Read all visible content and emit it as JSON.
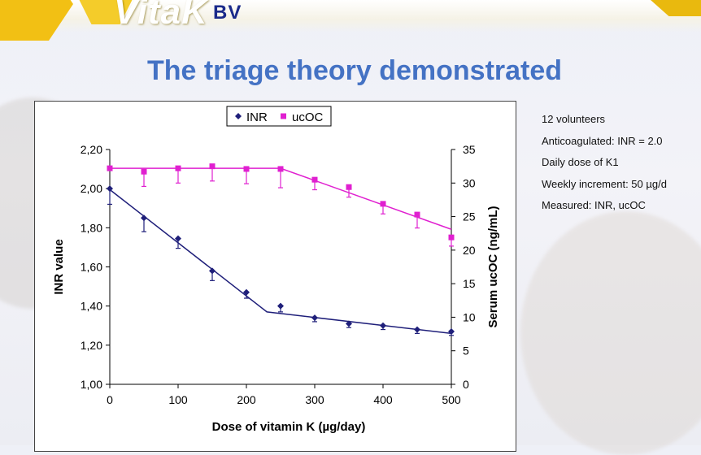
{
  "brand": {
    "logo_text": "VitaK",
    "logo_suffix": "BV",
    "accent": "#f2c014"
  },
  "slide": {
    "title": "The triage theory demonstrated"
  },
  "notes": [
    "12 volunteers",
    "Anticoagulated: INR = 2.0",
    "Daily dose of K1",
    "Weekly increment: 50 µg/d",
    "Measured: INR, ucOC"
  ],
  "chart_data": {
    "type": "scatter",
    "title": "",
    "xlabel": "Dose of vitamin K (µg/day)",
    "ylabel": "INR value",
    "y2label": "Serum ucOC (ng/mL)",
    "xlim": [
      0,
      500
    ],
    "ylim": [
      1.0,
      2.2
    ],
    "y2lim": [
      0,
      35
    ],
    "x_ticks": [
      "0",
      "100",
      "200",
      "300",
      "400",
      "500"
    ],
    "y_ticks": [
      "1,00",
      "1,20",
      "1,40",
      "1,60",
      "1,80",
      "2,00",
      "2,20"
    ],
    "y2_ticks": [
      "0",
      "5",
      "10",
      "15",
      "20",
      "25",
      "30",
      "35"
    ],
    "legend": {
      "placement": "top-center",
      "entries": [
        "INR",
        "ucOC"
      ]
    },
    "series": [
      {
        "name": "INR",
        "axis": "left",
        "color": "#1f1f7a",
        "marker": "diamond",
        "x": [
          0,
          50,
          100,
          150,
          200,
          250,
          300,
          350,
          400,
          450,
          500
        ],
        "values": [
          2.0,
          1.85,
          1.745,
          1.58,
          1.47,
          1.4,
          1.34,
          1.31,
          1.3,
          1.28,
          1.27
        ],
        "error": [
          0.08,
          0.07,
          0.05,
          0.05,
          0.03,
          0.03,
          0.02,
          0.02,
          0.02,
          0.02,
          0.02
        ],
        "fit_x": [
          0,
          230,
          500
        ],
        "fit_y": [
          1.995,
          1.37,
          1.26
        ]
      },
      {
        "name": "ucOC",
        "axis": "right",
        "color": "#e020d0",
        "marker": "square",
        "x": [
          0,
          50,
          100,
          150,
          200,
          250,
          300,
          350,
          400,
          450,
          500
        ],
        "values": [
          32.2,
          31.7,
          32.2,
          32.5,
          32.1,
          32.1,
          30.5,
          29.4,
          26.9,
          25.3,
          21.9
        ],
        "error": [
          0,
          2.2,
          2.2,
          2.2,
          2.2,
          2.8,
          1.5,
          1.5,
          1.5,
          2.0,
          1.3
        ],
        "fit_x": [
          0,
          250,
          500
        ],
        "fit_y": [
          32.2,
          32.2,
          23.1
        ]
      }
    ]
  }
}
